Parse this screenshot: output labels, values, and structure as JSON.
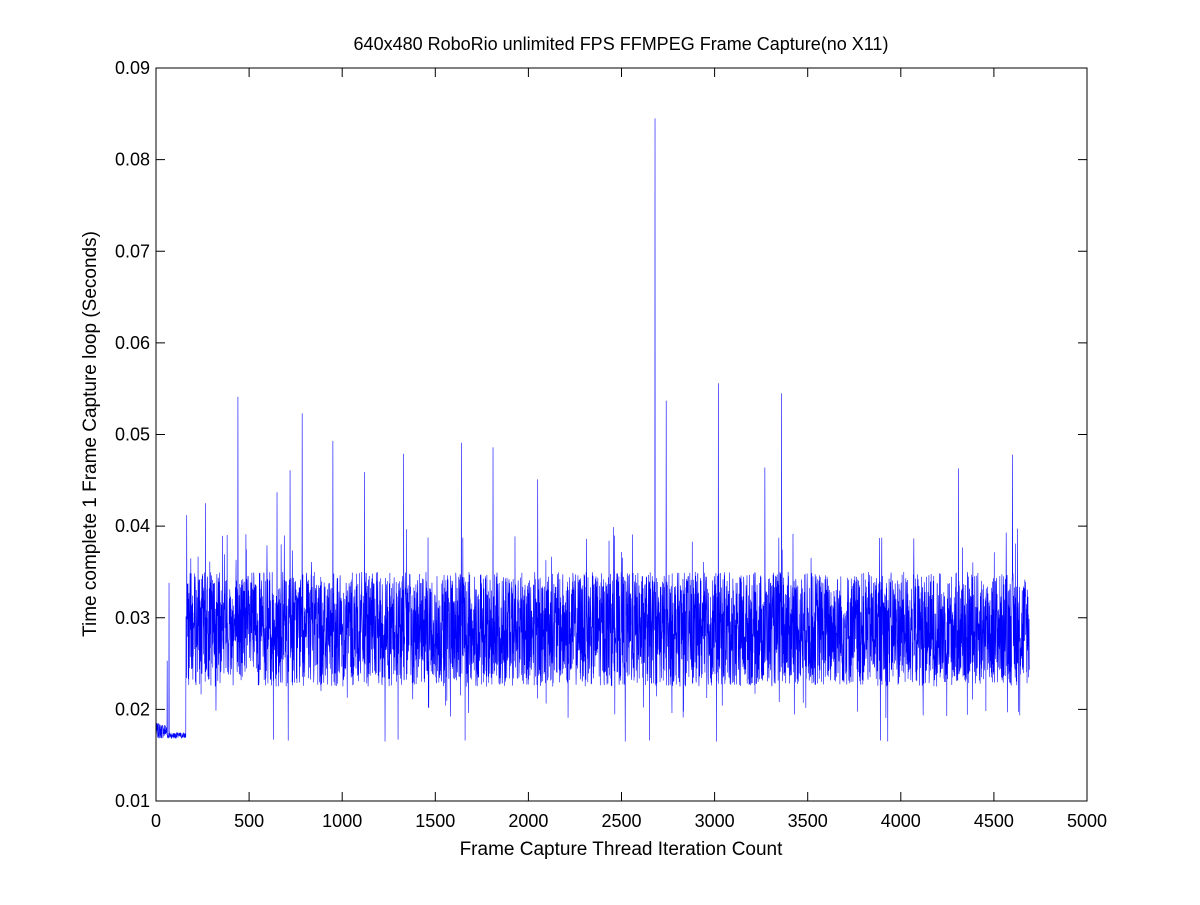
{
  "chart_data": {
    "type": "line",
    "title": "640x480 RoboRio unlimited FPS FFMPEG Frame Capture(no X11)",
    "xlabel": "Frame Capture Thread Iteration Count",
    "ylabel": "Time complete 1 Frame Capture loop (Seconds)",
    "xlim": [
      0,
      5000
    ],
    "ylim": [
      0.01,
      0.09
    ],
    "xticks": [
      0,
      500,
      1000,
      1500,
      2000,
      2500,
      3000,
      3500,
      4000,
      4500,
      5000
    ],
    "xtick_labels": [
      "0",
      "500",
      "1000",
      "1500",
      "2000",
      "2500",
      "3000",
      "3500",
      "4000",
      "4500",
      "5000"
    ],
    "yticks": [
      0.01,
      0.02,
      0.03,
      0.04,
      0.05,
      0.06,
      0.07,
      0.08,
      0.09
    ],
    "ytick_labels": [
      "0.01",
      "0.02",
      "0.03",
      "0.04",
      "0.05",
      "0.06",
      "0.07",
      "0.08",
      "0.09"
    ],
    "grid": false,
    "legend": "none",
    "series": [
      {
        "color": "#0000ff",
        "n_points": 4690,
        "x_range": [
          1,
          4690
        ],
        "segments": [
          {
            "x": [
              1,
              60
            ],
            "y_low": 0.0168,
            "y_high": 0.0185
          },
          {
            "x": [
              60,
              160
            ],
            "y_low": 0.0168,
            "y_high": 0.0175
          },
          {
            "x": [
              160,
              4690
            ],
            "y_low": 0.0225,
            "y_high": 0.035
          }
        ],
        "spikes": [
          {
            "x": 70,
            "y": 0.0338
          },
          {
            "x": 60,
            "y": 0.0253
          },
          {
            "x": 165,
            "y": 0.0412
          },
          {
            "x": 265,
            "y": 0.0425
          },
          {
            "x": 440,
            "y": 0.0541
          },
          {
            "x": 650,
            "y": 0.0437
          },
          {
            "x": 720,
            "y": 0.0461
          },
          {
            "x": 785,
            "y": 0.0523
          },
          {
            "x": 950,
            "y": 0.0493
          },
          {
            "x": 1120,
            "y": 0.0459
          },
          {
            "x": 1330,
            "y": 0.0479
          },
          {
            "x": 1640,
            "y": 0.0491
          },
          {
            "x": 1810,
            "y": 0.0486
          },
          {
            "x": 2050,
            "y": 0.0451
          },
          {
            "x": 2680,
            "y": 0.0845
          },
          {
            "x": 2740,
            "y": 0.0537
          },
          {
            "x": 3020,
            "y": 0.0556
          },
          {
            "x": 3270,
            "y": 0.0464
          },
          {
            "x": 3360,
            "y": 0.0545
          },
          {
            "x": 4310,
            "y": 0.0463
          },
          {
            "x": 4600,
            "y": 0.0478
          }
        ],
        "dips": [
          {
            "x": 630,
            "y": 0.0167
          },
          {
            "x": 710,
            "y": 0.0166
          },
          {
            "x": 1230,
            "y": 0.0165
          },
          {
            "x": 1300,
            "y": 0.0167
          },
          {
            "x": 1660,
            "y": 0.0166
          },
          {
            "x": 1810,
            "y": 0.0166
          },
          {
            "x": 2520,
            "y": 0.0165
          },
          {
            "x": 2650,
            "y": 0.0166
          },
          {
            "x": 3010,
            "y": 0.0165
          },
          {
            "x": 3890,
            "y": 0.0166
          },
          {
            "x": 3930,
            "y": 0.0165
          }
        ]
      }
    ]
  }
}
